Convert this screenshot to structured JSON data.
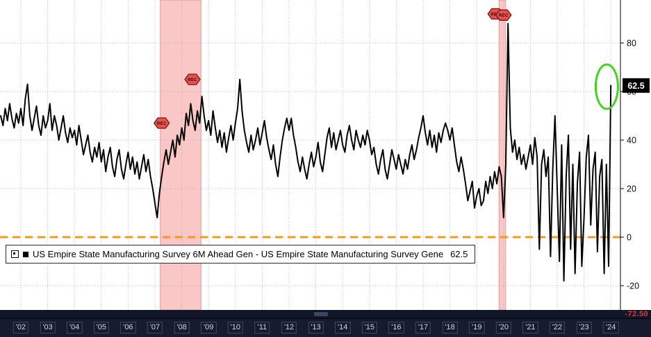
{
  "chart_data": {
    "type": "line",
    "series_name": "US Empire State Manufacturing Survey 6M Ahead Gen",
    "start_year_fraction": 2001.25,
    "points_per_year": 12,
    "x_axis_start_year": 2002,
    "x_tick_labels": [
      "'02",
      "'03",
      "'04",
      "'05",
      "'06",
      "'07",
      "'08",
      "'09",
      "'10",
      "'11",
      "'12",
      "'13",
      "'14",
      "'15",
      "'16",
      "'17",
      "'18",
      "'19",
      "'20",
      "'21",
      "'22",
      "'23",
      "'24"
    ],
    "yticks": [
      80,
      60,
      40,
      20,
      0,
      -20
    ],
    "ylim": [
      -30,
      98
    ],
    "grid": true,
    "legend_position": "bottom-left",
    "line_color": "#000000",
    "band_color": "rgba(242,122,122,0.42)",
    "band_edge_color": "rgba(225,90,90,0.55)",
    "zero_line": {
      "value": 0,
      "color": "#f5991d",
      "style": "dashed"
    },
    "recession_bands": [
      {
        "start": 2007.2,
        "end": 2008.72
      },
      {
        "start": 2019.83,
        "end": 2020.08
      }
    ],
    "annotations": {
      "rec_badges": [
        {
          "label": "REC",
          "year": 2007.25,
          "value": 47
        },
        {
          "label": "REC",
          "year": 2008.4,
          "value": 65
        },
        {
          "label": "REC",
          "year": 2019.7,
          "value": 92
        },
        {
          "label": "REC",
          "year": 2020.0,
          "value": 91.5
        }
      ],
      "highlight_ellipse": {
        "year": 2023.85,
        "value": 62,
        "color": "#3fd41f"
      },
      "last_value_callout": {
        "label": "62.5",
        "value": 62.5
      }
    },
    "values": [
      50,
      46,
      53,
      48,
      55,
      49,
      45,
      51,
      47,
      53,
      46,
      57,
      63,
      50,
      44,
      49,
      54,
      46,
      42,
      50,
      45,
      48,
      55,
      44,
      50,
      46,
      40,
      45,
      50,
      43,
      39,
      45,
      41,
      44,
      38,
      46,
      40,
      34,
      38,
      42,
      35,
      31,
      37,
      33,
      39,
      31,
      36,
      27,
      33,
      37,
      29,
      25,
      32,
      36,
      28,
      24,
      30,
      35,
      28,
      33,
      26,
      31,
      24,
      29,
      34,
      27,
      32,
      25,
      20,
      14,
      8,
      18,
      25,
      31,
      36,
      30,
      35,
      40,
      33,
      42,
      38,
      45,
      40,
      51,
      46,
      55,
      48,
      44,
      52,
      47,
      58,
      50,
      44,
      48,
      42,
      52,
      45,
      39,
      44,
      37,
      43,
      35,
      41,
      46,
      40,
      47,
      53,
      65,
      52,
      44,
      39,
      35,
      42,
      36,
      40,
      45,
      38,
      43,
      48,
      41,
      36,
      32,
      38,
      30,
      25,
      33,
      40,
      45,
      49,
      44,
      49,
      42,
      37,
      31,
      27,
      33,
      28,
      24,
      30,
      35,
      29,
      33,
      39,
      31,
      27,
      34,
      41,
      45,
      37,
      43,
      36,
      40,
      44,
      38,
      35,
      42,
      46,
      40,
      36,
      44,
      40,
      37,
      42,
      38,
      44,
      40,
      34,
      37,
      30,
      26,
      32,
      36,
      28,
      24,
      30,
      36,
      32,
      28,
      34,
      30,
      26,
      32,
      28,
      34,
      38,
      32,
      36,
      41,
      45,
      50,
      43,
      38,
      44,
      37,
      42,
      35,
      43,
      39,
      44,
      47,
      44,
      40,
      45,
      38,
      31,
      27,
      33,
      28,
      22,
      15,
      19,
      23,
      12,
      17,
      20,
      13,
      15,
      23,
      18,
      25,
      20,
      27,
      22,
      29,
      25,
      8,
      30,
      88,
      45,
      35,
      40,
      32,
      37,
      30,
      34,
      28,
      33,
      38,
      30,
      41,
      33,
      -5,
      30,
      36,
      25,
      33,
      -8,
      28,
      50,
      20,
      -10,
      38,
      -18,
      25,
      42,
      -5,
      30,
      -15,
      22,
      35,
      -12,
      8,
      33,
      42,
      5,
      28,
      35,
      -6,
      25,
      32,
      -15,
      30,
      -12,
      62.5
    ]
  },
  "legend": {
    "label": "US Empire State Manufacturing Survey 6M Ahead Gen - US Empire State Manufacturing Survey Gene",
    "value": "62.5",
    "swatch_color": "#000000"
  },
  "footer": {
    "scroll_value": "-72.50"
  }
}
